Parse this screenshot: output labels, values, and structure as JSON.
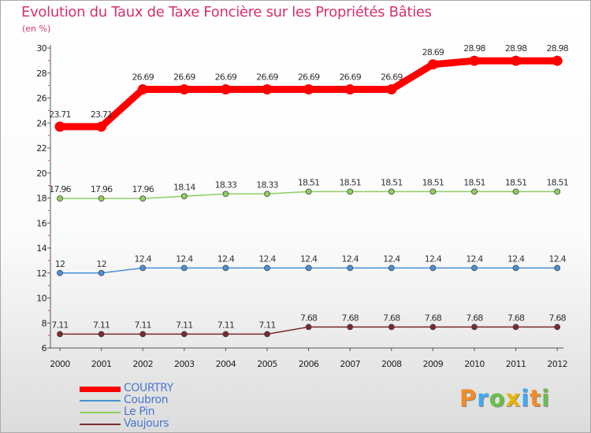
{
  "title": "Evolution du Taux de Taxe Foncière sur les Propriétés Bâties",
  "subtitle": "(en %)",
  "logo": {
    "text": "Proxiti",
    "letters": [
      {
        "ch": "P",
        "color": "#f28c28"
      },
      {
        "ch": "r",
        "color": "#3fa9f5"
      },
      {
        "ch": "o",
        "color": "#6abf4b"
      },
      {
        "ch": "x",
        "color": "#e8b400"
      },
      {
        "ch": "i",
        "color": "#3fa9f5"
      },
      {
        "ch": "t",
        "color": "#f28c28"
      },
      {
        "ch": "i",
        "color": "#6abf4b"
      }
    ]
  },
  "chart_data": {
    "type": "line",
    "title": "Evolution du Taux de Taxe Foncière sur les Propriétés Bâties",
    "ylabel": "(en %)",
    "x": [
      "2000",
      "2001",
      "2002",
      "2003",
      "2004",
      "2005",
      "2006",
      "2007",
      "2008",
      "2009",
      "2010",
      "2011",
      "2012"
    ],
    "ylim": [
      6,
      30
    ],
    "yticks": [
      6,
      8,
      10,
      12,
      14,
      16,
      18,
      20,
      22,
      24,
      26,
      28,
      30
    ],
    "grid": false,
    "legend_position": "bottom-left",
    "series": [
      {
        "name": "COURTRY",
        "color": "#ff0000",
        "emphasis": true,
        "values": [
          23.71,
          23.71,
          26.69,
          26.69,
          26.69,
          26.69,
          26.69,
          26.69,
          26.69,
          28.69,
          28.98,
          28.98,
          28.98
        ],
        "labels": [
          "23.71",
          "23.71",
          "26.69",
          "26.69",
          "26.69",
          "26.69",
          "26.69",
          "26.69",
          "26.69",
          "28.69",
          "28.98",
          "28.98",
          "28.98"
        ]
      },
      {
        "name": "Coubron",
        "color": "#4a90d9",
        "emphasis": false,
        "values": [
          12,
          12,
          12.4,
          12.4,
          12.4,
          12.4,
          12.4,
          12.4,
          12.4,
          12.4,
          12.4,
          12.4,
          12.4
        ],
        "labels": [
          "12",
          "12",
          "12.4",
          "12.4",
          "12.4",
          "12.4",
          "12.4",
          "12.4",
          "12.4",
          "12.4",
          "12.4",
          "12.4",
          "12.4"
        ]
      },
      {
        "name": "Le Pin",
        "color": "#8ed060",
        "emphasis": false,
        "values": [
          17.96,
          17.96,
          17.96,
          18.14,
          18.33,
          18.33,
          18.51,
          18.51,
          18.51,
          18.51,
          18.51,
          18.51,
          18.51
        ],
        "labels": [
          "17.96",
          "17.96",
          "17.96",
          "18.14",
          "18.33",
          "18.33",
          "18.51",
          "18.51",
          "18.51",
          "18.51",
          "18.51",
          "18.51",
          "18.51"
        ]
      },
      {
        "name": "Vaujours",
        "color": "#7a2a2a",
        "emphasis": false,
        "values": [
          7.11,
          7.11,
          7.11,
          7.11,
          7.11,
          7.11,
          7.68,
          7.68,
          7.68,
          7.68,
          7.68,
          7.68,
          7.68
        ],
        "labels": [
          "7.11",
          "7.11",
          "7.11",
          "7.11",
          "7.11",
          "7.11",
          "7.68",
          "7.68",
          "7.68",
          "7.68",
          "7.68",
          "7.68",
          "7.68"
        ]
      }
    ]
  }
}
